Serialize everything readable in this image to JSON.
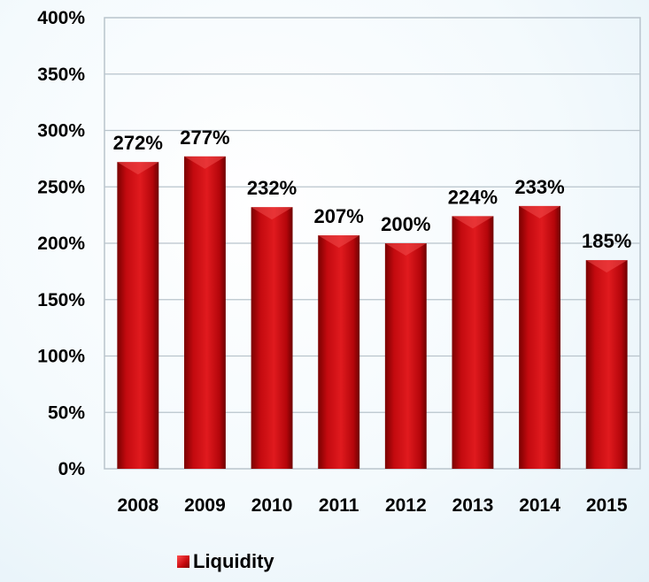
{
  "chart_data": {
    "type": "bar",
    "categories": [
      "2008",
      "2009",
      "2010",
      "2011",
      "2012",
      "2013",
      "2014",
      "2015"
    ],
    "series": [
      {
        "name": "Liquidity",
        "values": [
          272,
          277,
          232,
          207,
          200,
          224,
          233,
          185
        ]
      }
    ],
    "data_labels": [
      "272%",
      "277%",
      "232%",
      "207%",
      "200%",
      "224%",
      "233%",
      "185%"
    ],
    "y_ticks": [
      "0%",
      "50%",
      "100%",
      "150%",
      "200%",
      "250%",
      "300%",
      "350%",
      "400%"
    ],
    "ylim": [
      0,
      400
    ],
    "grid": true,
    "legend": "bottom",
    "bar_color": "#c8080e"
  }
}
